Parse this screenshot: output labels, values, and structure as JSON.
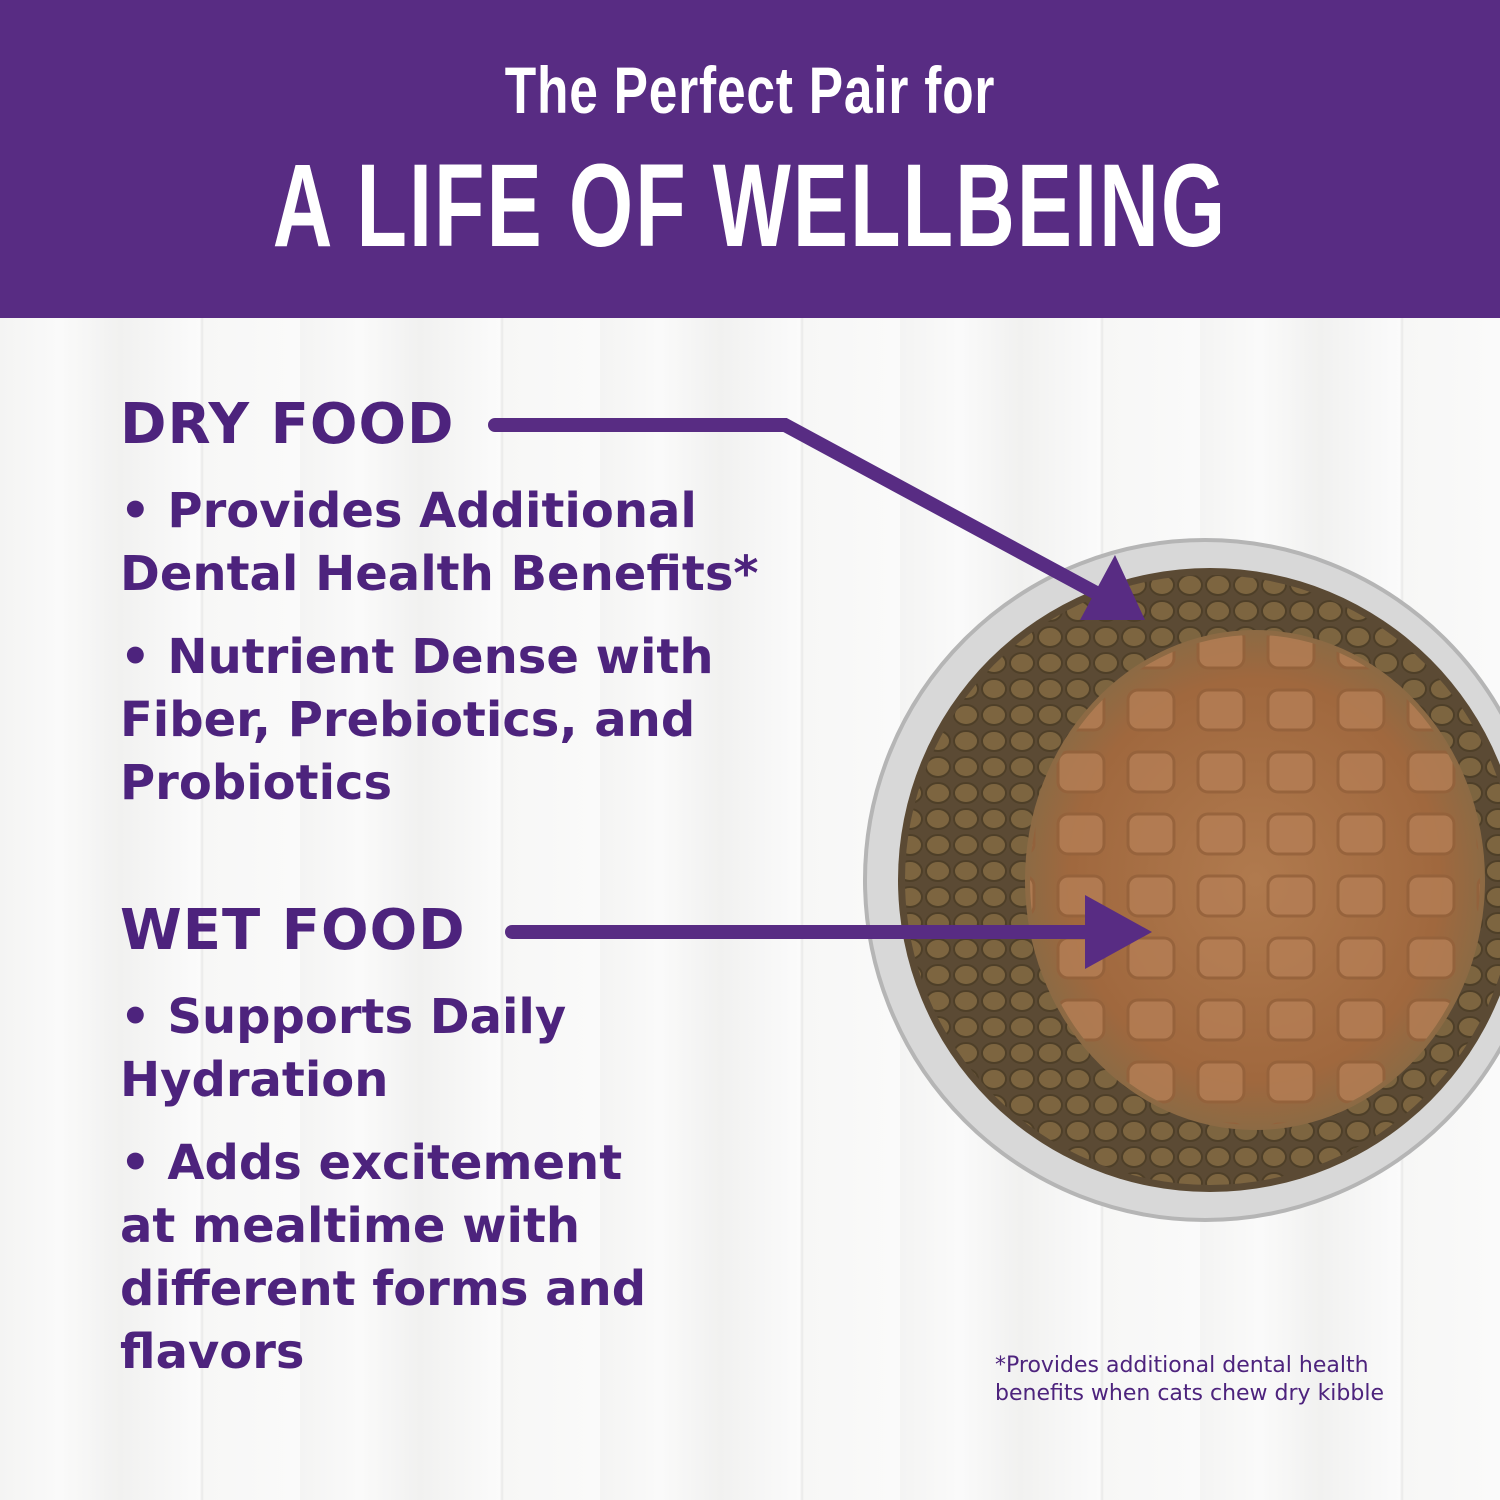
{
  "banner": {
    "subtitle": "The Perfect Pair for",
    "title": "A LIFE OF WELLBEING"
  },
  "dry": {
    "heading": "DRY FOOD",
    "items": [
      "• Provides Additional Dental Health Benefits*",
      "• Nutrient Dense with Fiber, Prebiotics, and Probiotics"
    ]
  },
  "wet": {
    "heading": "WET FOOD",
    "items": [
      "• Supports Daily Hydration",
      "• Adds excitement at mealtime with different forms and flavors"
    ]
  },
  "footnote": "*Provides additional dental health benefits when cats chew dry kibble",
  "colors": {
    "banner": "#582c83",
    "text": "#4d237d"
  }
}
